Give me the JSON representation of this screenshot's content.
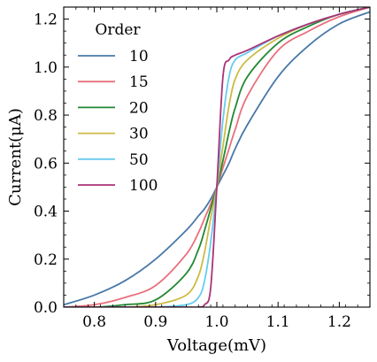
{
  "chart_data": {
    "type": "line",
    "title": "",
    "xlabel": "Voltage(mV)",
    "ylabel": "Current(μA)",
    "xlim": [
      0.75,
      1.25
    ],
    "ylim": [
      0.0,
      1.25
    ],
    "xticks": [
      0.8,
      0.9,
      1.0,
      1.1,
      1.2
    ],
    "xtick_labels": [
      "0.8",
      "0.9",
      "1.0",
      "1.1",
      "1.2"
    ],
    "yticks": [
      0.0,
      0.2,
      0.4,
      0.6,
      0.8,
      1.0,
      1.2
    ],
    "ytick_labels": [
      "0.0",
      "0.2",
      "0.4",
      "0.6",
      "0.8",
      "1.0",
      "1.2"
    ],
    "grid": false,
    "legend": {
      "title": "Order",
      "placement": "top-left"
    },
    "x": [
      0.75,
      0.8,
      0.85,
      0.9,
      0.95,
      0.97,
      0.98,
      0.99,
      1.0,
      1.01,
      1.02,
      1.03,
      1.05,
      1.1,
      1.15,
      1.2,
      1.25
    ],
    "series": [
      {
        "name": "10",
        "color": "#4878a8",
        "values": [
          0.01,
          0.05,
          0.11,
          0.2,
          0.32,
          0.38,
          0.41,
          0.45,
          0.5,
          0.55,
          0.6,
          0.66,
          0.76,
          0.96,
          1.09,
          1.18,
          1.23
        ]
      },
      {
        "name": "15",
        "color": "#e8707c",
        "values": [
          0.0,
          0.01,
          0.04,
          0.09,
          0.22,
          0.31,
          0.37,
          0.43,
          0.5,
          0.58,
          0.66,
          0.74,
          0.88,
          1.07,
          1.15,
          1.21,
          1.25
        ]
      },
      {
        "name": "20",
        "color": "#228833",
        "values": [
          0.0,
          0.0,
          0.01,
          0.03,
          0.14,
          0.24,
          0.32,
          0.41,
          0.5,
          0.61,
          0.73,
          0.83,
          0.96,
          1.1,
          1.17,
          1.22,
          1.25
        ]
      },
      {
        "name": "30",
        "color": "#ccbb44",
        "values": [
          0.0,
          0.0,
          0.0,
          0.01,
          0.05,
          0.13,
          0.23,
          0.37,
          0.5,
          0.67,
          0.84,
          0.95,
          1.03,
          1.12,
          1.18,
          1.22,
          1.25
        ]
      },
      {
        "name": "50",
        "color": "#66ccee",
        "values": [
          0.0,
          0.0,
          0.0,
          0.0,
          0.01,
          0.04,
          0.11,
          0.27,
          0.5,
          0.78,
          0.96,
          1.03,
          1.06,
          1.13,
          1.18,
          1.22,
          1.25
        ]
      },
      {
        "name": "100",
        "color": "#aa3377",
        "values": [
          0.0,
          0.0,
          0.0,
          0.0,
          0.0,
          0.0,
          0.01,
          0.08,
          0.5,
          0.96,
          1.03,
          1.05,
          1.07,
          1.13,
          1.18,
          1.22,
          1.25
        ]
      }
    ]
  }
}
